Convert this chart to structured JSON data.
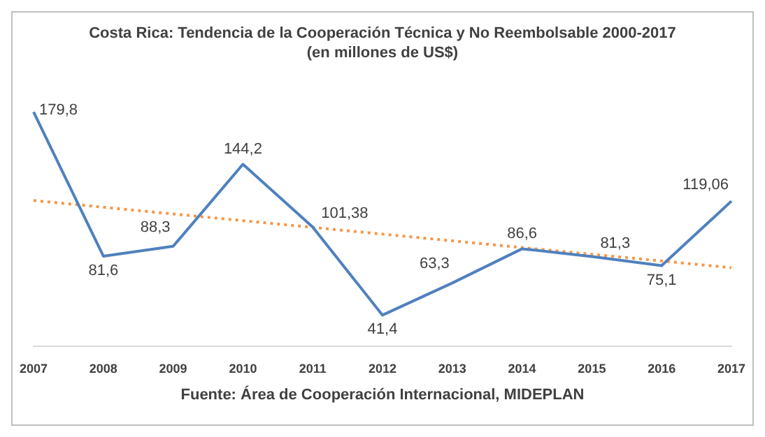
{
  "chart_data": {
    "type": "line",
    "title": "Costa Rica: Tendencia de la Cooperación Técnica y No Reembolsable 2000-2017 (en millones de US$)",
    "annotations": [
      "Fuente: Área de Cooperación Internacional, MIDEPLAN"
    ],
    "categories": [
      "2007",
      "2008",
      "2009",
      "2010",
      "2011",
      "2012",
      "2013",
      "2014",
      "2015",
      "2016",
      "2017"
    ],
    "series": [
      {
        "color": "#4f81bd",
        "values": [
          179.8,
          81.6,
          88.3,
          144.2,
          101.38,
          41.4,
          63.3,
          86.6,
          81.3,
          75.1,
          119.06
        ],
        "value_labels": [
          "179,8",
          "81,6",
          "88,3",
          "144,2",
          "101,38",
          "41,4",
          "63,3",
          "86,6",
          "81,3",
          "75,1",
          "119,06"
        ]
      },
      {
        "type": "line",
        "color": "#f79646",
        "values": [
          119.5,
          null,
          null,
          null,
          null,
          null,
          null,
          null,
          null,
          null,
          73.7
        ],
        "line_style": "dotted"
      }
    ],
    "tick_labels": "x",
    "grid": false,
    "legend": false,
    "marker": "none"
  }
}
